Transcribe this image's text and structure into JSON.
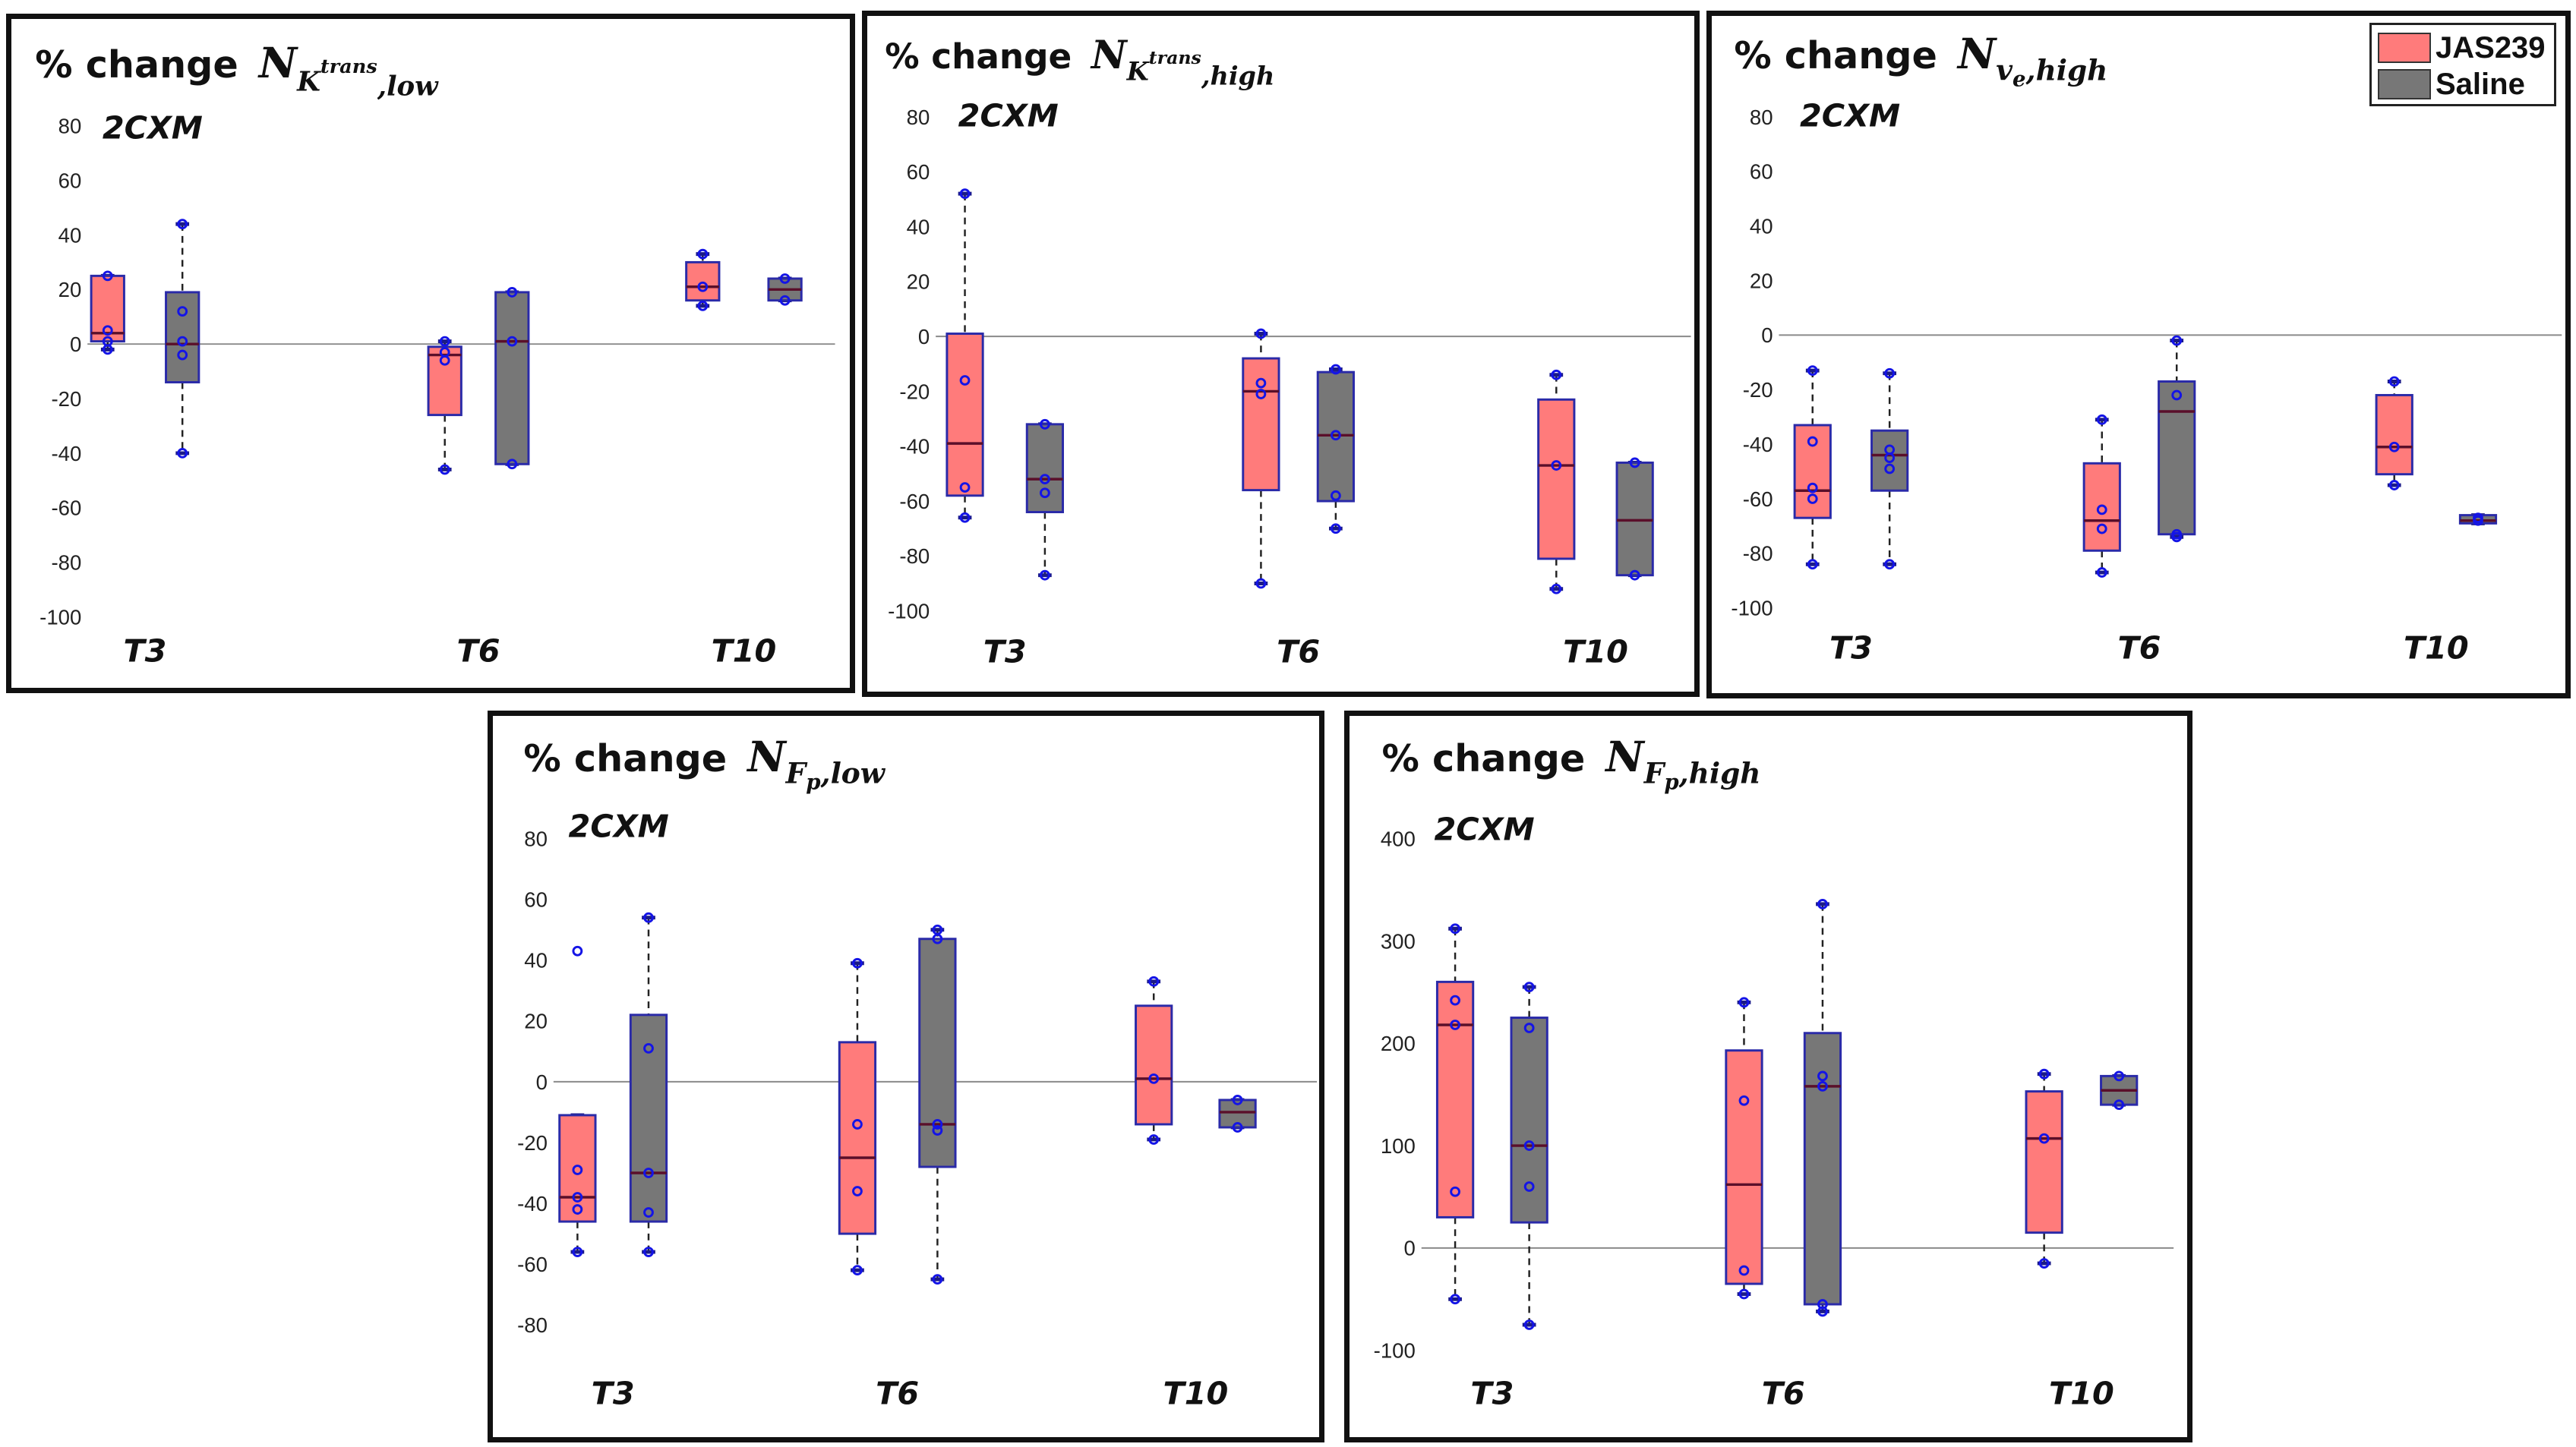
{
  "legend": {
    "items": [
      {
        "label": "JAS239",
        "color": "#ff7b7b"
      },
      {
        "label": "Saline",
        "color": "#777777"
      }
    ]
  },
  "colors": {
    "jas": "#ff7b7b",
    "saline": "#777777",
    "edge": "#2a2aa8",
    "point": "#1414e6",
    "median": "#5a0f2a"
  },
  "chart_data": [
    {
      "type": "box",
      "title": "% change",
      "title_symbol": "N",
      "title_base": "K",
      "title_sup": "trans",
      "title_sub": ",low",
      "model_label": "2CXM",
      "categories": [
        "T3",
        "T6",
        "T10"
      ],
      "ylim": [
        -100,
        80
      ],
      "yticks": [
        "80",
        "60",
        "40",
        "20",
        "0",
        "-20",
        "-40",
        "-60",
        "-80",
        "-100"
      ],
      "ytick_values": [
        80,
        60,
        40,
        20,
        0,
        -20,
        -40,
        -60,
        -80,
        -100
      ],
      "series": [
        {
          "name": "JAS239",
          "boxes": [
            {
              "q1": 1,
              "median": 4,
              "q3": 25,
              "wlo": -2,
              "whi": 25,
              "points": [
                25,
                5,
                1,
                -2
              ]
            },
            {
              "q1": -26,
              "median": -4,
              "q3": -1,
              "wlo": -46,
              "whi": 1,
              "points": [
                1,
                -3,
                -6,
                -46
              ]
            },
            {
              "q1": 16,
              "median": 21,
              "q3": 30,
              "wlo": 14,
              "whi": 33,
              "points": [
                33,
                21,
                14
              ]
            }
          ]
        },
        {
          "name": "Saline",
          "boxes": [
            {
              "q1": -14,
              "median": 0,
              "q3": 19,
              "wlo": -40,
              "whi": 44,
              "points": [
                44,
                12,
                1,
                -4,
                -40
              ]
            },
            {
              "q1": -44,
              "median": 1,
              "q3": 19,
              "wlo": -44,
              "whi": 19,
              "points": [
                19,
                1,
                -44
              ]
            },
            {
              "q1": 16,
              "median": 20,
              "q3": 24,
              "wlo": 16,
              "whi": 24,
              "points": [
                24,
                16
              ]
            }
          ]
        }
      ]
    },
    {
      "type": "box",
      "title": "% change",
      "title_symbol": "N",
      "title_base": "K",
      "title_sup": "trans",
      "title_sub": ",high",
      "model_label": "2CXM",
      "categories": [
        "T3",
        "T6",
        "T10"
      ],
      "ylim": [
        -100,
        80
      ],
      "yticks": [
        "80",
        "60",
        "40",
        "20",
        "0",
        "-20",
        "-40",
        "-60",
        "-80",
        "-100"
      ],
      "ytick_values": [
        80,
        60,
        40,
        20,
        0,
        -20,
        -40,
        -60,
        -80,
        -100
      ],
      "series": [
        {
          "name": "JAS239",
          "boxes": [
            {
              "q1": -58,
              "median": -39,
              "q3": 1,
              "wlo": -66,
              "whi": 52,
              "points": [
                52,
                -16,
                -55,
                -66
              ]
            },
            {
              "q1": -56,
              "median": -20,
              "q3": -8,
              "wlo": -90,
              "whi": 1,
              "points": [
                1,
                -17,
                -21,
                -90
              ]
            },
            {
              "q1": -81,
              "median": -47,
              "q3": -23,
              "wlo": -92,
              "whi": -14,
              "points": [
                -14,
                -47,
                -92
              ]
            }
          ]
        },
        {
          "name": "Saline",
          "boxes": [
            {
              "q1": -64,
              "median": -52,
              "q3": -32,
              "wlo": -87,
              "whi": -32,
              "points": [
                -32,
                -52,
                -57,
                -87
              ]
            },
            {
              "q1": -60,
              "median": -36,
              "q3": -13,
              "wlo": -70,
              "whi": -12,
              "points": [
                -12,
                -36,
                -58,
                -70
              ]
            },
            {
              "q1": -87,
              "median": -67,
              "q3": -46,
              "wlo": -87,
              "whi": -46,
              "points": [
                -46,
                -87
              ]
            }
          ]
        }
      ]
    },
    {
      "type": "box",
      "title": "% change",
      "title_symbol": "N",
      "title_base": "v",
      "title_base_sub": "e",
      "title_sub": ",high",
      "model_label": "2CXM",
      "categories": [
        "T3",
        "T6",
        "T10"
      ],
      "ylim": [
        -100,
        80
      ],
      "yticks": [
        "80",
        "60",
        "40",
        "20",
        "0",
        "-20",
        "-40",
        "-60",
        "-80",
        "-100"
      ],
      "ytick_values": [
        80,
        60,
        40,
        20,
        0,
        -20,
        -40,
        -60,
        -80,
        -100
      ],
      "series": [
        {
          "name": "JAS239",
          "boxes": [
            {
              "q1": -67,
              "median": -57,
              "q3": -33,
              "wlo": -84,
              "whi": -13,
              "points": [
                -13,
                -39,
                -56,
                -60,
                -84
              ]
            },
            {
              "q1": -79,
              "median": -68,
              "q3": -47,
              "wlo": -87,
              "whi": -31,
              "points": [
                -31,
                -64,
                -71,
                -87
              ]
            },
            {
              "q1": -51,
              "median": -41,
              "q3": -22,
              "wlo": -55,
              "whi": -17,
              "points": [
                -17,
                -41,
                -55
              ]
            }
          ]
        },
        {
          "name": "Saline",
          "boxes": [
            {
              "q1": -57,
              "median": -44,
              "q3": -35,
              "wlo": -84,
              "whi": -14,
              "points": [
                -14,
                -42,
                -45,
                -49,
                -84
              ]
            },
            {
              "q1": -73,
              "median": -28,
              "q3": -17,
              "wlo": -74,
              "whi": -2,
              "points": [
                -2,
                -22,
                -73,
                -74
              ]
            },
            {
              "q1": -69,
              "median": -68,
              "q3": -66,
              "wlo": -69,
              "whi": -66,
              "points": [
                -67,
                -68
              ]
            }
          ]
        }
      ]
    },
    {
      "type": "box",
      "title": "% change",
      "title_symbol": "N",
      "title_base": "F",
      "title_base_sub": "p",
      "title_sub": ",low",
      "model_label": "2CXM",
      "categories": [
        "T3",
        "T6",
        "T10"
      ],
      "ylim": [
        -80,
        80
      ],
      "yticks": [
        "80",
        "60",
        "40",
        "20",
        "0",
        "-20",
        "-40",
        "-60",
        "-80"
      ],
      "ytick_values": [
        80,
        60,
        40,
        20,
        0,
        -20,
        -40,
        -60,
        -80
      ],
      "series": [
        {
          "name": "JAS239",
          "boxes": [
            {
              "q1": -46,
              "median": -38,
              "q3": -11,
              "wlo": -56,
              "whi": -11,
              "points": [
                43,
                -29,
                -38,
                -42,
                -56
              ]
            },
            {
              "q1": -50,
              "median": -25,
              "q3": 13,
              "wlo": -62,
              "whi": 39,
              "points": [
                39,
                -14,
                -36,
                -62
              ]
            },
            {
              "q1": -14,
              "median": 1,
              "q3": 25,
              "wlo": -19,
              "whi": 33,
              "points": [
                33,
                1,
                -19
              ]
            }
          ]
        },
        {
          "name": "Saline",
          "boxes": [
            {
              "q1": -46,
              "median": -30,
              "q3": 22,
              "wlo": -56,
              "whi": 54,
              "points": [
                54,
                11,
                -30,
                -43,
                -56
              ]
            },
            {
              "q1": -28,
              "median": -14,
              "q3": 47,
              "wlo": -65,
              "whi": 50,
              "points": [
                50,
                47,
                -14,
                -16,
                -65
              ]
            },
            {
              "q1": -15,
              "median": -10,
              "q3": -6,
              "wlo": -15,
              "whi": -6,
              "points": [
                -6,
                -15
              ]
            }
          ]
        }
      ]
    },
    {
      "type": "box",
      "title": "% change",
      "title_symbol": "N",
      "title_base": "F",
      "title_base_sub": "p",
      "title_sub": ",high",
      "model_label": "2CXM",
      "categories": [
        "T3",
        "T6",
        "T10"
      ],
      "ylim": [
        -100,
        400
      ],
      "yticks": [
        "400",
        "300",
        "200",
        "100",
        "0",
        "-100"
      ],
      "ytick_values": [
        400,
        300,
        200,
        100,
        0,
        -100
      ],
      "series": [
        {
          "name": "JAS239",
          "boxes": [
            {
              "q1": 30,
              "median": 218,
              "q3": 260,
              "wlo": -50,
              "whi": 312,
              "points": [
                312,
                242,
                218,
                55,
                -50
              ]
            },
            {
              "q1": -35,
              "median": 62,
              "q3": 193,
              "wlo": -45,
              "whi": 240,
              "points": [
                240,
                144,
                -22,
                -45
              ]
            },
            {
              "q1": 15,
              "median": 107,
              "q3": 153,
              "wlo": -15,
              "whi": 170,
              "points": [
                170,
                107,
                -15
              ]
            }
          ]
        },
        {
          "name": "Saline",
          "boxes": [
            {
              "q1": 25,
              "median": 100,
              "q3": 225,
              "wlo": -75,
              "whi": 255,
              "points": [
                255,
                215,
                100,
                60,
                -75
              ]
            },
            {
              "q1": -55,
              "median": 158,
              "q3": 210,
              "wlo": -62,
              "whi": 336,
              "points": [
                336,
                168,
                158,
                -55,
                -62
              ]
            },
            {
              "q1": 140,
              "median": 154,
              "q3": 168,
              "wlo": 140,
              "whi": 168,
              "points": [
                168,
                140
              ]
            }
          ]
        }
      ]
    }
  ]
}
